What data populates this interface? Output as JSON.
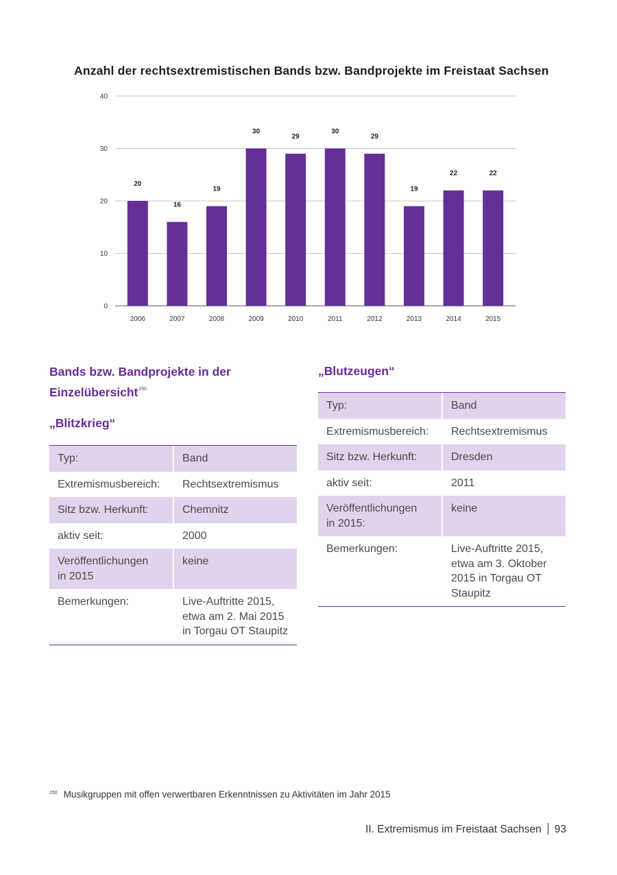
{
  "chart": {
    "title": "Anzahl der rechtsextremistischen Bands bzw. Bandprojekte im Freistaat Sachsen"
  },
  "chart_data": {
    "type": "bar",
    "title": "Anzahl der rechtsextremistischen Bands bzw. Bandprojekte im Freistaat Sachsen",
    "categories": [
      "2006",
      "2007",
      "2008",
      "2009",
      "2010",
      "2011",
      "2012",
      "2013",
      "2014",
      "2015"
    ],
    "values": [
      20,
      16,
      19,
      30,
      29,
      30,
      29,
      19,
      22,
      22
    ],
    "ylim": [
      0,
      40
    ],
    "yticks": [
      0,
      10,
      20,
      30,
      40
    ],
    "xlabel": "",
    "ylabel": "",
    "grid": true,
    "bar_color": "#642f96",
    "grid_color": "#c8c8c8"
  },
  "section": {
    "heading_line1": "Bands bzw. Bandprojekte in der",
    "heading_line2": "Einzelübersicht",
    "heading_footnote_ref": "150"
  },
  "bands": [
    {
      "name": "„Blitzkrieg“",
      "rows": [
        {
          "label": "Typ:",
          "value": "Band"
        },
        {
          "label": "Extremismusbereich:",
          "value": "Rechtsextremismus"
        },
        {
          "label": "Sitz bzw. Herkunft:",
          "value": "Chemnitz"
        },
        {
          "label": "aktiv seit:",
          "value": "2000"
        },
        {
          "label": "Veröffentlichungen\nin 2015",
          "value": "keine"
        },
        {
          "label": "Bemerkungen:",
          "value": "Live-Auftritte 2015,\netwa am 2. Mai 2015\nin Torgau OT Staupitz"
        }
      ]
    },
    {
      "name": "„Blutzeugen“",
      "rows": [
        {
          "label": "Typ:",
          "value": "Band"
        },
        {
          "label": "Extremismusbereich:",
          "value": "Rechtsextremismus"
        },
        {
          "label": "Sitz bzw. Herkunft:",
          "value": "Dresden"
        },
        {
          "label": "aktiv seit:",
          "value": "2011"
        },
        {
          "label": "Veröffentlichungen\nin 2015:",
          "value": "keine"
        },
        {
          "label": "Bemerkungen:",
          "value": "Live-Auftritte 2015,\netwa am 3. Oktober\n2015 in Torgau OT\nStaupitz"
        }
      ]
    }
  ],
  "footnote": {
    "number": "150",
    "text": "Musikgruppen mit offen verwertbaren Erkenntnissen zu Aktivitäten im Jahr 2015"
  },
  "footer": {
    "section": "II. Extremismus im Freistaat Sachsen",
    "page": "93"
  },
  "colors": {
    "accent": "#6a2a96",
    "row_shade": "#e2d3ec"
  }
}
